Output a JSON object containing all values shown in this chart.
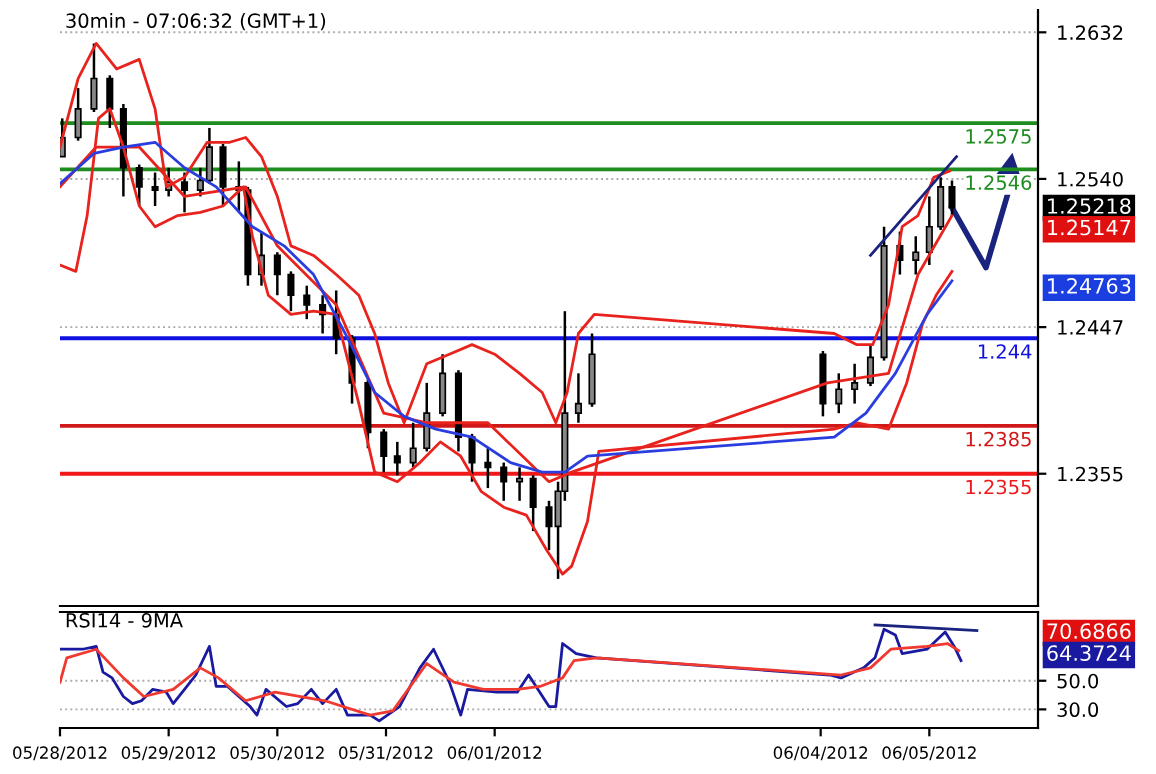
{
  "chart_data": [
    {
      "type": "candlestick",
      "title": "30min - 07:06:32 (GMT+1)",
      "grid": "y",
      "tick_labels": "y",
      "xlim": [
        "2012-05-28",
        "2012-06-06"
      ],
      "ylim": [
        1.2272,
        1.2646
      ],
      "yticks": [
        1.2632,
        {
          "value": 1.254,
          "label": "1.2540"
        },
        1.2447,
        1.2355
      ],
      "color": "#000000",
      "x": [
        "2012-05-28T00:30",
        "2012-05-28T04:00",
        "2012-05-28T07:30",
        "2012-05-28T11:00",
        "2012-05-28T14:00",
        "2012-05-28T17:30",
        "2012-05-28T21:00",
        "2012-05-29T00:00",
        "2012-05-29T03:30",
        "2012-05-29T07:00",
        "2012-05-29T09:00",
        "2012-05-29T12:00",
        "2012-05-29T15:30",
        "2012-05-29T17:30",
        "2012-05-29T20:30",
        "2012-05-30T00:00",
        "2012-05-30T03:00",
        "2012-05-30T06:30",
        "2012-05-30T10:00",
        "2012-05-30T13:00",
        "2012-05-30T16:30",
        "2012-05-30T20:00",
        "2012-05-30T23:30",
        "2012-05-31T02:30",
        "2012-05-31T06:00",
        "2012-05-31T09:00",
        "2012-05-31T12:30",
        "2012-05-31T16:00",
        "2012-05-31T19:00",
        "2012-05-31T22:30",
        "2012-06-01T02:00",
        "2012-06-01T05:30",
        "2012-06-01T08:30",
        "2012-06-01T12:00",
        "2012-06-01T14:00",
        "2012-06-01T15:30",
        "2012-06-01T18:30",
        "2012-06-01T21:30",
        "2012-06-04T00:30",
        "2012-06-04T04:00",
        "2012-06-04T07:30",
        "2012-06-04T11:00",
        "2012-06-04T14:00",
        "2012-06-04T17:30",
        "2012-06-04T21:00",
        "2012-06-05T00:00",
        "2012-06-05T02:30",
        "2012-06-05T05:00"
      ],
      "ohlc": [
        [
          1.2554,
          1.2578,
          1.2554,
          1.2566
        ],
        [
          1.2566,
          1.2597,
          1.2564,
          1.2584
        ],
        [
          1.2584,
          1.2625,
          1.2582,
          1.2603
        ],
        [
          1.2603,
          1.2605,
          1.2572,
          1.2584
        ],
        [
          1.2584,
          1.2587,
          1.2529,
          1.2547
        ],
        [
          1.2547,
          1.2549,
          1.2523,
          1.2535
        ],
        [
          1.2535,
          1.2544,
          1.2523,
          1.2533
        ],
        [
          1.2533,
          1.2547,
          1.2529,
          1.2538
        ],
        [
          1.2538,
          1.2544,
          1.2519,
          1.2533
        ],
        [
          1.2533,
          1.2547,
          1.2529,
          1.2539
        ],
        [
          1.2539,
          1.2572,
          1.2537,
          1.256
        ],
        [
          1.256,
          1.2562,
          1.2523,
          1.2535
        ],
        [
          1.2535,
          1.2551,
          1.2519,
          1.2533
        ],
        [
          1.2533,
          1.2535,
          1.2473,
          1.248
        ],
        [
          1.248,
          1.2507,
          1.2473,
          1.2492
        ],
        [
          1.2492,
          1.2494,
          1.2467,
          1.248
        ],
        [
          1.248,
          1.2482,
          1.2457,
          1.2467
        ],
        [
          1.2467,
          1.2473,
          1.2452,
          1.2461
        ],
        [
          1.2461,
          1.2467,
          1.2443,
          1.2455
        ],
        [
          1.2455,
          1.247,
          1.243,
          1.244
        ],
        [
          1.244,
          1.2442,
          1.2399,
          1.2412
        ],
        [
          1.2412,
          1.2414,
          1.2371,
          1.2381
        ],
        [
          1.2381,
          1.2383,
          1.2356,
          1.2366
        ],
        [
          1.2366,
          1.2375,
          1.2354,
          1.2362
        ],
        [
          1.2362,
          1.2387,
          1.2359,
          1.2371
        ],
        [
          1.2371,
          1.2412,
          1.2369,
          1.2393
        ],
        [
          1.2393,
          1.243,
          1.2391,
          1.2418
        ],
        [
          1.2418,
          1.242,
          1.2369,
          1.2378
        ],
        [
          1.2378,
          1.238,
          1.235,
          1.2362
        ],
        [
          1.2362,
          1.2371,
          1.2346,
          1.2359
        ],
        [
          1.2359,
          1.2362,
          1.2338,
          1.235
        ],
        [
          1.235,
          1.2359,
          1.2338,
          1.2352
        ],
        [
          1.2352,
          1.2354,
          1.2319,
          1.2334
        ],
        [
          1.2334,
          1.2338,
          1.2307,
          1.2322
        ],
        [
          1.2322,
          1.235,
          1.2289,
          1.2344
        ],
        [
          1.2344,
          1.2457,
          1.2338,
          1.2393
        ],
        [
          1.2393,
          1.2418,
          1.2387,
          1.2399
        ],
        [
          1.2399,
          1.2443,
          1.2397,
          1.243
        ],
        [
          1.243,
          1.2432,
          1.2391,
          1.2399
        ],
        [
          1.2399,
          1.2418,
          1.2393,
          1.2408
        ],
        [
          1.2408,
          1.2424,
          1.2399,
          1.2412
        ],
        [
          1.2412,
          1.2436,
          1.241,
          1.2428
        ],
        [
          1.2428,
          1.251,
          1.2426,
          1.2498
        ],
        [
          1.2498,
          1.2507,
          1.248,
          1.2489
        ],
        [
          1.2489,
          1.2504,
          1.248,
          1.2494
        ],
        [
          1.2494,
          1.2529,
          1.2486,
          1.251
        ],
        [
          1.251,
          1.2541,
          1.2508,
          1.2535
        ],
        [
          1.2535,
          1.2539,
          1.2517,
          1.2522
        ]
      ],
      "series": [
        {
          "type": "line",
          "color": "#e8231e",
          "x": [
            "2012-05-28T00:00",
            "2012-05-28T04:00",
            "2012-05-28T08:00",
            "2012-05-28T12:30",
            "2012-05-28T17:30",
            "2012-05-28T21:00",
            "2012-05-28T23:30",
            "2012-05-29T03:30",
            "2012-05-29T08:30",
            "2012-05-29T13:30",
            "2012-05-29T17:00",
            "2012-05-29T20:30",
            "2012-05-30T00:00",
            "2012-05-30T03:00",
            "2012-05-30T08:00",
            "2012-05-30T13:00",
            "2012-05-30T18:00",
            "2012-05-30T21:30",
            "2012-05-31T00:30",
            "2012-05-31T04:00",
            "2012-05-31T09:00",
            "2012-05-31T14:00",
            "2012-05-31T19:00",
            "2012-06-01T00:00",
            "2012-06-01T05:30",
            "2012-06-01T10:30",
            "2012-06-01T13:30",
            "2012-06-01T16:00",
            "2012-06-01T18:30",
            "2012-06-01T22:00",
            "2012-06-04T03:00",
            "2012-06-04T08:00",
            "2012-06-04T11:30",
            "2012-06-04T15:00",
            "2012-06-04T18:00",
            "2012-06-04T21:30",
            "2012-06-05T01:00",
            "2012-06-05T04:30"
          ],
          "values": [
            1.256,
            1.2603,
            1.2625,
            1.2609,
            1.2615,
            1.2584,
            1.2535,
            1.2541,
            1.2563,
            1.2563,
            1.2566,
            1.2554,
            1.2529,
            1.2498,
            1.2492,
            1.248,
            1.2467,
            1.2443,
            1.2412,
            1.2387,
            1.2424,
            1.243,
            1.2436,
            1.243,
            1.2418,
            1.2406,
            1.2387,
            1.2406,
            1.2443,
            1.2455,
            1.2443,
            1.2436,
            1.2436,
            1.2461,
            1.251,
            1.2517,
            1.2541,
            1.2545
          ]
        },
        {
          "type": "line",
          "color": "#e8231e",
          "x": [
            "2012-05-28T00:00",
            "2012-05-28T08:00",
            "2012-05-28T17:30",
            "2012-05-29T03:30",
            "2012-05-29T17:00",
            "2012-05-30T00:00",
            "2012-05-30T13:00",
            "2012-05-30T23:30",
            "2012-05-31T09:00",
            "2012-05-31T22:30",
            "2012-06-01T12:00",
            "2012-06-01T17:00",
            "2012-06-04T01:30",
            "2012-06-04T15:00",
            "2012-06-04T21:30",
            "2012-06-05T05:00"
          ],
          "values": [
            1.2535,
            1.256,
            1.256,
            1.2529,
            1.2535,
            1.2498,
            1.2461,
            1.2393,
            1.2387,
            1.2387,
            1.235,
            1.2356,
            1.2412,
            1.2418,
            1.248,
            1.2517
          ]
        },
        {
          "type": "line",
          "color": "#e8231e",
          "x": [
            "2012-05-28T00:00",
            "2012-05-28T03:30",
            "2012-05-28T06:00",
            "2012-05-28T08:30",
            "2012-05-28T11:00",
            "2012-05-28T14:00",
            "2012-05-28T17:30",
            "2012-05-28T21:00",
            "2012-05-29T02:00",
            "2012-05-29T07:00",
            "2012-05-29T12:00",
            "2012-05-29T16:30",
            "2012-05-29T18:30",
            "2012-05-29T22:00",
            "2012-05-30T03:00",
            "2012-05-30T08:00",
            "2012-05-30T13:00",
            "2012-05-30T18:00",
            "2012-05-30T21:30",
            "2012-05-31T02:30",
            "2012-05-31T07:30",
            "2012-05-31T12:00",
            "2012-05-31T16:30",
            "2012-05-31T21:00",
            "2012-06-01T02:00",
            "2012-06-01T07:00",
            "2012-06-01T11:30",
            "2012-06-01T15:00",
            "2012-06-01T17:00",
            "2012-06-01T20:30",
            "2012-06-01T23:00",
            "2012-06-04T03:00",
            "2012-06-04T08:00",
            "2012-06-04T15:00",
            "2012-06-04T19:00",
            "2012-06-04T22:30",
            "2012-06-05T01:30",
            "2012-06-05T05:00"
          ],
          "values": [
            1.2486,
            1.2482,
            1.2517,
            1.2578,
            1.2584,
            1.256,
            1.2523,
            1.251,
            1.2517,
            1.2519,
            1.2523,
            1.2535,
            1.2504,
            1.2467,
            1.2455,
            1.2457,
            1.2455,
            1.2399,
            1.2356,
            1.235,
            1.2362,
            1.2375,
            1.2366,
            1.2344,
            1.2334,
            1.2329,
            1.2307,
            1.2292,
            1.2297,
            1.2325,
            1.2369,
            1.2383,
            1.2387,
            1.2383,
            1.2412,
            1.2449,
            1.2467,
            1.2482
          ]
        },
        {
          "type": "line",
          "color": "#2a3ee0",
          "x": [
            "2012-05-28T00:00",
            "2012-05-28T07:30",
            "2012-05-28T14:00",
            "2012-05-28T21:00",
            "2012-05-29T03:30",
            "2012-05-29T10:30",
            "2012-05-29T18:30",
            "2012-05-30T01:30",
            "2012-05-30T08:00",
            "2012-05-30T15:00",
            "2012-05-30T21:30",
            "2012-05-31T04:00",
            "2012-05-31T11:00",
            "2012-05-31T19:00",
            "2012-06-01T03:30",
            "2012-06-01T10:30",
            "2012-06-01T15:30",
            "2012-06-01T20:30",
            "2012-06-04T03:00",
            "2012-06-04T10:00",
            "2012-06-04T16:30",
            "2012-06-04T23:30",
            "2012-06-05T05:00"
          ],
          "values": [
            1.2537,
            1.2556,
            1.256,
            1.2563,
            1.2547,
            1.2535,
            1.251,
            1.2498,
            1.248,
            1.2443,
            1.2406,
            1.2391,
            1.2383,
            1.2378,
            1.2362,
            1.2356,
            1.2356,
            1.2366,
            1.2378,
            1.2393,
            1.2418,
            1.2455,
            1.2476
          ]
        },
        {
          "type": "line",
          "color": "#1a237e",
          "x": [
            "2012-06-04T11:00",
            "2012-06-05T06:00"
          ],
          "values": [
            1.2492,
            1.2554
          ]
        }
      ],
      "ref_lines": [
        {
          "axis": "y",
          "value": 1.2575,
          "label": "1.2575",
          "color": "#1e8c1e"
        },
        {
          "axis": "y",
          "value": 1.2546,
          "label": "1.2546",
          "color": "#1e8c1e"
        },
        {
          "axis": "y",
          "value": 1.244,
          "label": "1.244",
          "color": "#1010e0"
        },
        {
          "axis": "y",
          "value": 1.2385,
          "label": "1.2385",
          "color": "#d01818"
        },
        {
          "axis": "y",
          "value": 1.2355,
          "label": "1.2355",
          "color": "#f01818"
        }
      ],
      "annotations": [
        "1.25218",
        "1.25147",
        "1.24763"
      ]
    },
    {
      "type": "line",
      "title": "RSI14 - 9MA",
      "grid": "y",
      "xlim": [
        "2012-05-28",
        "2012-06-06"
      ],
      "ylim": [
        17,
        98
      ],
      "yticks": [
        {
          "value": 30,
          "label": "30.0"
        },
        {
          "value": 50,
          "label": "50.0"
        }
      ],
      "xticks": [
        {
          "value": "2012-05-28",
          "label": "05/28/2012"
        },
        {
          "value": "2012-05-29",
          "label": "05/29/2012"
        },
        {
          "value": "2012-05-30",
          "label": "05/30/2012"
        },
        {
          "value": "2012-05-31",
          "label": "05/31/2012"
        },
        {
          "value": "2012-06-01",
          "label": "06/01/2012"
        },
        {
          "value": "2012-06-04",
          "label": "06/04/2012"
        },
        {
          "value": "2012-06-05",
          "label": "06/05/2012"
        }
      ],
      "series": [
        {
          "color": "#1a1aa0",
          "x": [
            "2012-05-28T00:00",
            "2012-05-28T05:00",
            "2012-05-28T08:00",
            "2012-05-28T09:30",
            "2012-05-28T11:30",
            "2012-05-28T14:00",
            "2012-05-28T16:00",
            "2012-05-28T18:00",
            "2012-05-28T20:30",
            "2012-05-28T23:30",
            "2012-05-29T01:00",
            "2012-05-29T03:30",
            "2012-05-29T06:00",
            "2012-05-29T09:00",
            "2012-05-29T10:30",
            "2012-05-29T13:00",
            "2012-05-29T18:00",
            "2012-05-29T19:30",
            "2012-05-29T21:30",
            "2012-05-30T02:00",
            "2012-05-30T04:30",
            "2012-05-30T07:30",
            "2012-05-30T10:00",
            "2012-05-30T13:00",
            "2012-05-30T15:30",
            "2012-05-30T20:30",
            "2012-05-30T22:30",
            "2012-05-31T03:00",
            "2012-05-31T07:30",
            "2012-05-31T10:30",
            "2012-05-31T14:00",
            "2012-05-31T16:30",
            "2012-05-31T18:00",
            "2012-06-01T00:30",
            "2012-06-01T05:00",
            "2012-06-01T07:30",
            "2012-06-01T12:00",
            "2012-06-01T13:30",
            "2012-06-01T15:00",
            "2012-06-01T18:00",
            "2012-06-01T22:30",
            "2012-06-04T02:00",
            "2012-06-04T04:30",
            "2012-06-04T09:30",
            "2012-06-04T12:00",
            "2012-06-04T14:00",
            "2012-06-04T16:30",
            "2012-06-04T18:00",
            "2012-06-04T23:30",
            "2012-06-05T03:30",
            "2012-06-05T05:30",
            "2012-06-05T07:00"
          ],
          "values": [
            72,
            72,
            74,
            56,
            52,
            39,
            34,
            36,
            44,
            42,
            34,
            44,
            54,
            74,
            46,
            46,
            32,
            26,
            44,
            32,
            34,
            44,
            34,
            44,
            26,
            26,
            22,
            32,
            59,
            72,
            49,
            26,
            44,
            42,
            42,
            54,
            32,
            32,
            76,
            69,
            66,
            54,
            52,
            59,
            66,
            86,
            82,
            69,
            72,
            84,
            74,
            64
          ]
        },
        {
          "color": "#f03a30",
          "x": [
            "2012-05-28T00:00",
            "2012-05-28T01:30",
            "2012-05-28T08:00",
            "2012-05-28T14:00",
            "2012-05-28T18:30",
            "2012-05-29T01:00",
            "2012-05-29T07:00",
            "2012-05-29T11:00",
            "2012-05-29T17:00",
            "2012-05-29T23:30",
            "2012-05-30T10:30",
            "2012-05-30T20:30",
            "2012-05-31T01:30",
            "2012-05-31T09:00",
            "2012-05-31T15:00",
            "2012-05-31T21:30",
            "2012-06-01T05:00",
            "2012-06-01T10:00",
            "2012-06-01T15:00",
            "2012-06-01T17:30",
            "2012-06-01T22:30",
            "2012-06-04T04:30",
            "2012-06-04T11:00",
            "2012-06-04T15:30",
            "2012-06-04T23:30",
            "2012-06-05T04:00",
            "2012-06-05T06:30"
          ],
          "values": [
            49,
            66,
            72,
            52,
            39,
            44,
            59,
            52,
            36,
            42,
            36,
            26,
            29,
            62,
            49,
            44,
            44,
            46,
            52,
            64,
            66,
            54,
            59,
            72,
            74,
            76,
            71
          ]
        },
        {
          "color": "#1a237e",
          "x": [
            "2012-06-04T12:00",
            "2012-06-05T10:30"
          ],
          "values": [
            89,
            85
          ]
        }
      ],
      "annotations": [
        "70.6866",
        "64.3724"
      ]
    }
  ]
}
